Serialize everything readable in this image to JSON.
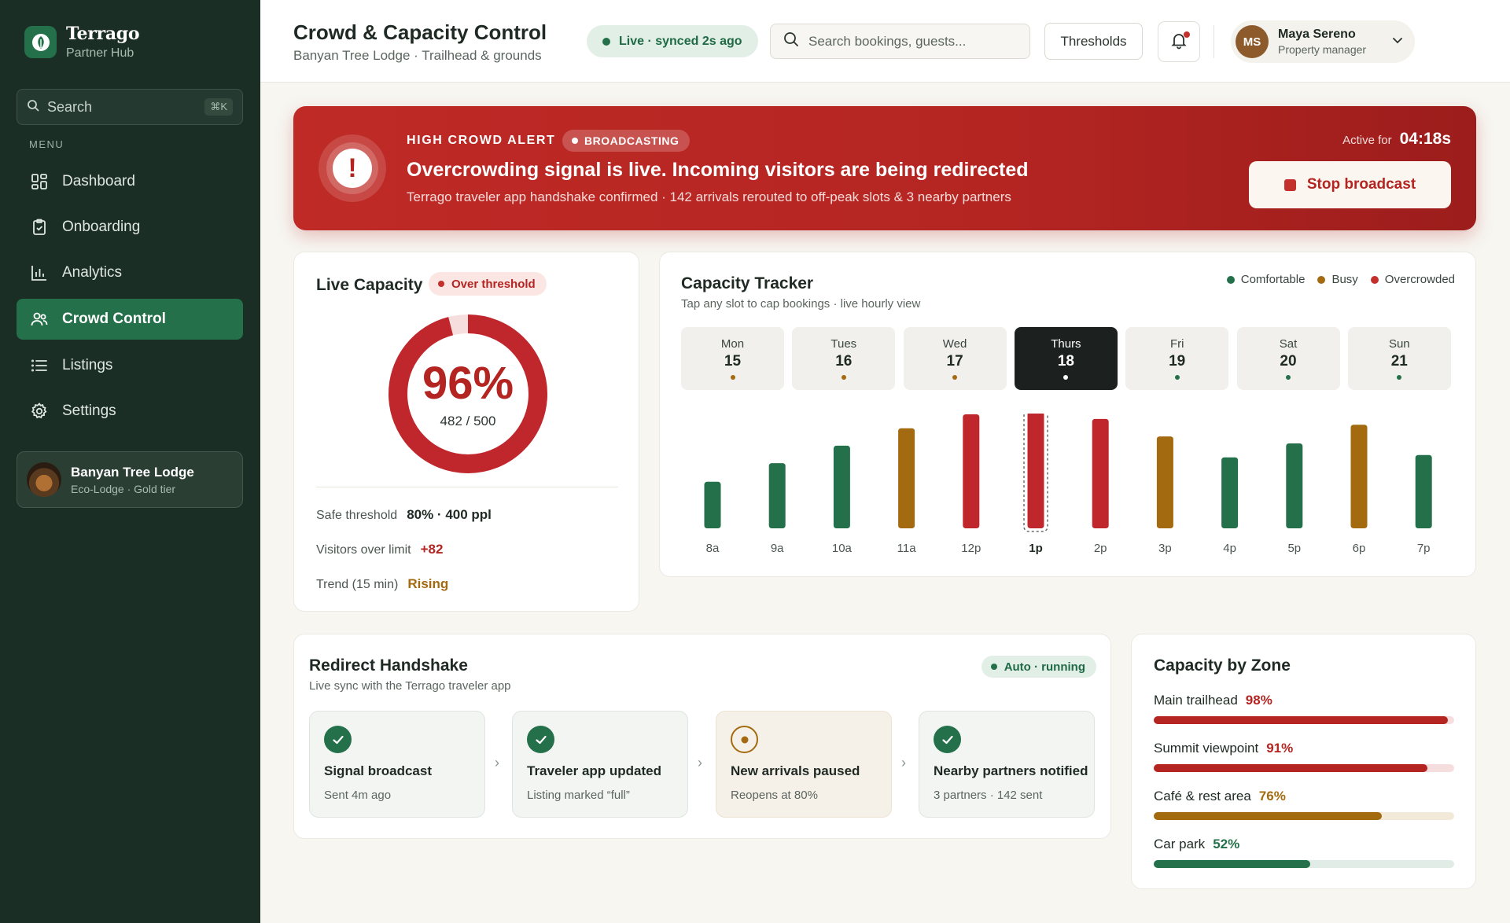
{
  "colors": {
    "brand_green": "#24704a",
    "danger_red": "#b42522",
    "busy_amber": "#a36a0f",
    "sidebar_bg": "#1b2e25"
  },
  "brand": {
    "name": "Terrago",
    "subtitle": "Partner Hub",
    "icon": "leaf-icon"
  },
  "sidebar": {
    "search_label": "Search",
    "search_shortcut": "⌘K",
    "menu_label": "MENU",
    "items": [
      {
        "label": "Dashboard",
        "icon": "dashboard-icon"
      },
      {
        "label": "Onboarding",
        "icon": "clipboard-check-icon"
      },
      {
        "label": "Analytics",
        "icon": "bar-chart-icon"
      },
      {
        "label": "Crowd Control",
        "icon": "users-icon",
        "active": true
      },
      {
        "label": "Listings",
        "icon": "list-icon"
      },
      {
        "label": "Settings",
        "icon": "gear-icon"
      }
    ],
    "property": {
      "name": "Banyan Tree Lodge",
      "tier": "Eco-Lodge · Gold tier"
    }
  },
  "header": {
    "title": "Crowd & Capacity Control",
    "subtitle": "Banyan Tree Lodge · Trailhead & grounds",
    "live_status": "Live · synced 2s ago",
    "search_placeholder": "Search bookings, guests...",
    "thresholds_label": "Thresholds",
    "user": {
      "initials": "MS",
      "name": "Maya Sereno",
      "role": "Property manager"
    }
  },
  "alert": {
    "kicker": "HIGH CROWD ALERT",
    "badge": "BROADCASTING",
    "title": "Overcrowding signal is live. Incoming visitors are being redirected",
    "description": "Terrago traveler app handshake confirmed · 142 arrivals rerouted to off-peak slots & 3 nearby partners",
    "active_label": "Active for",
    "active_time": "04:18s",
    "stop_label": "Stop broadcast"
  },
  "live_capacity": {
    "title": "Live Capacity",
    "badge": "Over threshold",
    "percent": 96,
    "percent_label": "96%",
    "ratio": "482 / 500",
    "stats": [
      {
        "label": "Safe threshold",
        "value": "80% · 400 ppl",
        "tone": "neutral"
      },
      {
        "label": "Visitors over limit",
        "value": "+82",
        "tone": "danger"
      },
      {
        "label": "Trend (15 min)",
        "value": "Rising",
        "tone": "warning"
      }
    ]
  },
  "capacity_tracker": {
    "title": "Capacity Tracker",
    "subtitle": "Tap any slot to cap bookings · live hourly view",
    "legend": [
      {
        "label": "Comfortable",
        "color": "#24704a"
      },
      {
        "label": "Busy",
        "color": "#a36a0f"
      },
      {
        "label": "Overcrowded",
        "color": "#c4302b"
      }
    ],
    "days": [
      {
        "name": "Mon",
        "num": "15",
        "status": "busy"
      },
      {
        "name": "Tues",
        "num": "16",
        "status": "busy"
      },
      {
        "name": "Wed",
        "num": "17",
        "status": "busy"
      },
      {
        "name": "Thurs",
        "num": "18",
        "status": "selected",
        "active": true
      },
      {
        "name": "Fri",
        "num": "19",
        "status": "comfortable"
      },
      {
        "name": "Sat",
        "num": "20",
        "status": "comfortable"
      },
      {
        "name": "Sun",
        "num": "21",
        "status": "comfortable"
      }
    ]
  },
  "chart_data": {
    "type": "bar",
    "categories": [
      "8a",
      "9a",
      "10a",
      "11a",
      "12p",
      "1p",
      "2p",
      "3p",
      "4p",
      "5p",
      "6p",
      "7p"
    ],
    "values": [
      40,
      56,
      71,
      86,
      98,
      100,
      94,
      79,
      61,
      73,
      89,
      63
    ],
    "status": [
      "comfortable",
      "comfortable",
      "comfortable",
      "busy",
      "overcrowded",
      "overcrowded",
      "overcrowded",
      "busy",
      "comfortable",
      "comfortable",
      "busy",
      "comfortable"
    ],
    "selected": "1p",
    "ylim": [
      0,
      100
    ]
  },
  "handshake": {
    "title": "Redirect Handshake",
    "subtitle": "Live sync with the Terrago traveler app",
    "status": "Auto · running",
    "steps": [
      {
        "title": "Signal broadcast",
        "sub": "Sent 4m ago",
        "state": "done"
      },
      {
        "title": "Traveler app updated",
        "sub": "Listing marked “full”",
        "state": "done"
      },
      {
        "title": "New arrivals paused",
        "sub": "Reopens at 80%",
        "state": "pending"
      },
      {
        "title": "Nearby partners notified",
        "sub": "3 partners · 142 sent",
        "state": "done"
      }
    ]
  },
  "zones": {
    "title": "Capacity by Zone",
    "items": [
      {
        "label": "Main trailhead",
        "pct": 98,
        "pct_label": "98%",
        "tone": "danger"
      },
      {
        "label": "Summit viewpoint",
        "pct": 91,
        "pct_label": "91%",
        "tone": "danger"
      },
      {
        "label": "Café & rest area",
        "pct": 76,
        "pct_label": "76%",
        "tone": "warning"
      },
      {
        "label": "Car park",
        "pct": 52,
        "pct_label": "52%",
        "tone": "ok"
      }
    ]
  }
}
